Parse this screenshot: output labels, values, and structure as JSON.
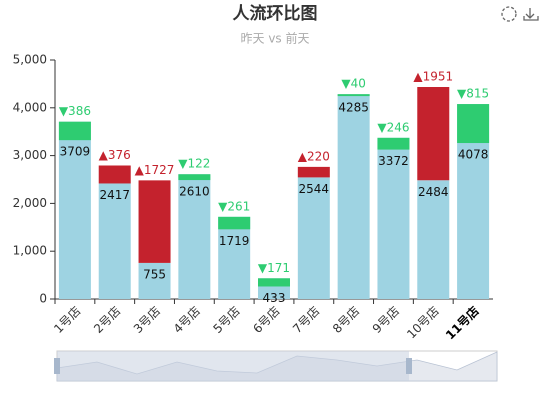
{
  "chart_data": {
    "type": "bar",
    "title": "人流环比图",
    "subtitle": "昨天 vs 前天",
    "categories": [
      "1号店",
      "2号店",
      "3号店",
      "4号店",
      "5号店",
      "6号店",
      "7号店",
      "8号店",
      "9号店",
      "10号店",
      "11号店"
    ],
    "series": [
      {
        "color": "#9ed3e2",
        "values": [
          3709,
          2417,
          755,
          2610,
          1719,
          433,
          2544,
          4285,
          3372,
          2484,
          4078
        ]
      },
      {
        "color_up": "#c4222d",
        "color_down": "#2ecc71",
        "values": [
          -386,
          376,
          1727,
          -122,
          -261,
          -171,
          220,
          -40,
          -246,
          1951,
          -815
        ],
        "value_labels": [
          "▼386",
          "▲376",
          "▲1727",
          "▼122",
          "▼261",
          "▼171",
          "▲220",
          "▼40",
          "▼246",
          "▲1951",
          "▼815"
        ]
      }
    ],
    "ylim": [
      0,
      5000
    ],
    "yticks": [
      0,
      {
        "value": 1000,
        "label": "1,000"
      },
      {
        "value": 2000,
        "label": "2,000"
      },
      {
        "value": 3000,
        "label": "3,000"
      },
      {
        "value": 4000,
        "label": "4,000"
      },
      {
        "value": 5000,
        "label": "5,000"
      }
    ]
  }
}
